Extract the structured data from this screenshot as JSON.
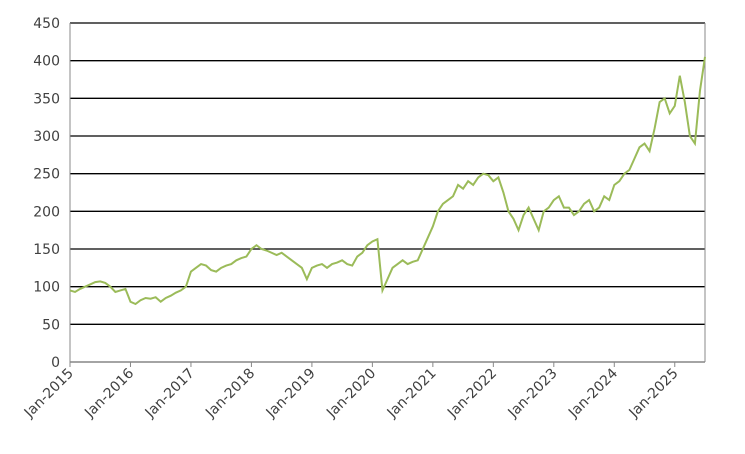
{
  "chart_data": {
    "type": "line",
    "x": [
      "2015-01",
      "2015-02",
      "2015-03",
      "2015-04",
      "2015-05",
      "2015-06",
      "2015-07",
      "2015-08",
      "2015-09",
      "2015-10",
      "2015-11",
      "2015-12",
      "2016-01",
      "2016-02",
      "2016-03",
      "2016-04",
      "2016-05",
      "2016-06",
      "2016-07",
      "2016-08",
      "2016-09",
      "2016-10",
      "2016-11",
      "2016-12",
      "2017-01",
      "2017-02",
      "2017-03",
      "2017-04",
      "2017-05",
      "2017-06",
      "2017-07",
      "2017-08",
      "2017-09",
      "2017-10",
      "2017-11",
      "2017-12",
      "2018-01",
      "2018-02",
      "2018-03",
      "2018-04",
      "2018-05",
      "2018-06",
      "2018-07",
      "2018-08",
      "2018-09",
      "2018-10",
      "2018-11",
      "2018-12",
      "2019-01",
      "2019-02",
      "2019-03",
      "2019-04",
      "2019-05",
      "2019-06",
      "2019-07",
      "2019-08",
      "2019-09",
      "2019-10",
      "2019-11",
      "2019-12",
      "2020-01",
      "2020-02",
      "2020-03",
      "2020-04",
      "2020-05",
      "2020-06",
      "2020-07",
      "2020-08",
      "2020-09",
      "2020-10",
      "2020-11",
      "2020-12",
      "2021-01",
      "2021-02",
      "2021-03",
      "2021-04",
      "2021-05",
      "2021-06",
      "2021-07",
      "2021-08",
      "2021-09",
      "2021-10",
      "2021-11",
      "2021-12",
      "2022-01",
      "2022-02",
      "2022-03",
      "2022-04",
      "2022-05",
      "2022-06",
      "2022-07",
      "2022-08",
      "2022-09",
      "2022-10",
      "2022-11",
      "2022-12",
      "2023-01",
      "2023-02",
      "2023-03",
      "2023-04",
      "2023-05",
      "2023-06",
      "2023-07",
      "2023-08",
      "2023-09",
      "2023-10",
      "2023-11",
      "2023-12",
      "2024-01",
      "2024-02",
      "2024-03",
      "2024-04",
      "2024-05",
      "2024-06",
      "2024-07",
      "2024-08",
      "2024-09",
      "2024-10",
      "2024-11",
      "2024-12",
      "2025-01",
      "2025-02",
      "2025-03",
      "2025-04",
      "2025-05",
      "2025-06",
      "2025-07"
    ],
    "series": [
      {
        "color": "#9bbb59",
        "values": [
          95,
          93,
          97,
          100,
          103,
          106,
          107,
          105,
          100,
          93,
          95,
          97,
          80,
          77,
          82,
          85,
          84,
          86,
          80,
          85,
          88,
          92,
          95,
          100,
          120,
          125,
          130,
          128,
          122,
          120,
          125,
          128,
          130,
          135,
          138,
          140,
          150,
          155,
          150,
          148,
          145,
          142,
          145,
          140,
          135,
          130,
          125,
          110,
          125,
          128,
          130,
          125,
          130,
          132,
          135,
          130,
          128,
          140,
          145,
          155,
          160,
          163,
          95,
          110,
          125,
          130,
          135,
          130,
          133,
          135,
          150,
          165,
          180,
          200,
          210,
          215,
          220,
          235,
          230,
          240,
          235,
          245,
          250,
          248,
          240,
          245,
          225,
          200,
          190,
          175,
          195,
          205,
          190,
          175,
          200,
          205,
          215,
          220,
          205,
          205,
          195,
          200,
          210,
          215,
          200,
          205,
          220,
          215,
          235,
          240,
          250,
          255,
          270,
          285,
          290,
          280,
          310,
          345,
          350,
          330,
          340,
          380,
          345,
          300,
          290,
          360,
          405
        ]
      }
    ],
    "xlim": [
      "2015-01",
      "2025-07"
    ],
    "xticks": [
      {
        "value": "2015-01",
        "label": "Jan-2015"
      },
      {
        "value": "2016-01",
        "label": "Jan-2016"
      },
      {
        "value": "2017-01",
        "label": "Jan-2017"
      },
      {
        "value": "2018-01",
        "label": "Jan-2018"
      },
      {
        "value": "2019-01",
        "label": "Jan-2019"
      },
      {
        "value": "2020-01",
        "label": "Jan-2020"
      },
      {
        "value": "2021-01",
        "label": "Jan-2021"
      },
      {
        "value": "2022-01",
        "label": "Jan-2022"
      },
      {
        "value": "2023-01",
        "label": "Jan-2023"
      },
      {
        "value": "2024-01",
        "label": "Jan-2024"
      },
      {
        "value": "2025-01",
        "label": "Jan-2025"
      }
    ],
    "ylim": [
      0,
      450
    ],
    "yticks": [
      0,
      50,
      100,
      150,
      200,
      250,
      300,
      350,
      400,
      450
    ],
    "grid": true
  }
}
